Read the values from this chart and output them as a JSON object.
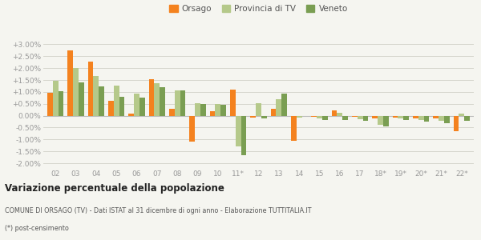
{
  "years": [
    "02",
    "03",
    "04",
    "05",
    "06",
    "07",
    "08",
    "09",
    "10",
    "11*",
    "12",
    "13",
    "14",
    "15",
    "16",
    "17",
    "18*",
    "19*",
    "20*",
    "21*",
    "22*"
  ],
  "orsago": [
    0.95,
    2.75,
    2.28,
    0.63,
    0.1,
    1.52,
    0.28,
    -1.08,
    0.18,
    1.1,
    -0.08,
    0.28,
    -1.05,
    -0.05,
    0.22,
    -0.05,
    -0.1,
    -0.08,
    -0.12,
    -0.12,
    -0.65
  ],
  "provincia": [
    1.47,
    2.0,
    1.68,
    1.26,
    0.92,
    1.38,
    1.07,
    0.52,
    0.48,
    -1.3,
    0.54,
    0.7,
    -0.08,
    -0.1,
    0.12,
    -0.15,
    -0.4,
    -0.12,
    -0.18,
    -0.22,
    0.08
  ],
  "veneto": [
    1.03,
    1.4,
    1.22,
    0.8,
    0.75,
    1.2,
    1.07,
    0.5,
    0.47,
    -1.65,
    -0.1,
    0.92,
    0.0,
    -0.18,
    -0.18,
    -0.2,
    -0.45,
    -0.18,
    -0.25,
    -0.3,
    -0.2
  ],
  "orsago_color": "#f4821f",
  "provincia_color": "#b5c98a",
  "veneto_color": "#7a9e52",
  "background": "#f5f5f0",
  "grid_color": "#d0d0c8",
  "title": "Variazione percentuale della popolazione",
  "subtitle": "COMUNE DI ORSAGO (TV) - Dati ISTAT al 31 dicembre di ogni anno - Elaborazione TUTTITALIA.IT",
  "footnote": "(*) post-censimento",
  "ylim": [
    -2.2,
    3.35
  ],
  "yticks": [
    -2.0,
    -1.5,
    -1.0,
    -0.5,
    0.0,
    0.5,
    1.0,
    1.5,
    2.0,
    2.5,
    3.0
  ]
}
